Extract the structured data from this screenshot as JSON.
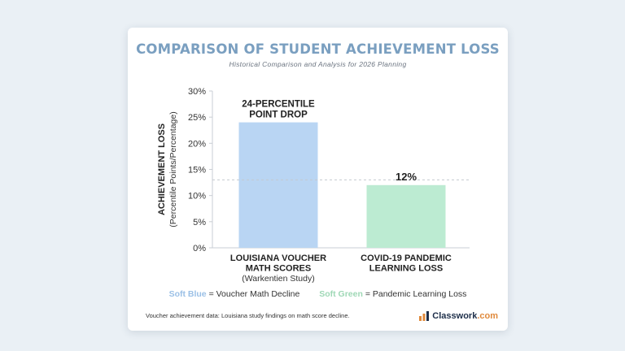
{
  "card": {
    "title": "COMPARISON OF STUDENT ACHIEVEMENT LOSS",
    "subtitle": "Historical Comparison and Analysis for 2026 Planning",
    "legend": {
      "blue_label": "Soft Blue",
      "blue_text": "= Voucher Math Decline",
      "green_label": "Soft Green",
      "green_text": "= Pandemic Learning Loss"
    },
    "footnote": "Voucher achievement data:  Louisiana study findings on math score decline.",
    "logo": {
      "name": "Classwork",
      "suffix": ".com",
      "icon": "bar-chart-logo-icon"
    }
  },
  "colors": {
    "bar_blue": "#b9d5f3",
    "bar_green": "#bcebd2",
    "title": "#7a9fc0"
  },
  "chart_data": {
    "type": "bar",
    "ylabel": "ACHIEVEMENT LOSS",
    "ylabel_sub": "(Percentile Points/Percentage)",
    "ylim": [
      0,
      30
    ],
    "yticks": [
      0,
      5,
      10,
      15,
      20,
      25,
      30
    ],
    "ytick_labels": [
      "0%",
      "5%",
      "10%",
      "15%",
      "20%",
      "25%",
      "30%"
    ],
    "categories": [
      {
        "lines": [
          "LOUISIANA VOUCHER",
          "MATH SCORES"
        ],
        "sub": "(Warkentien Study)"
      },
      {
        "lines": [
          "COVID-19 PANDEMIC",
          "LEARNING LOSS"
        ],
        "sub": ""
      }
    ],
    "values": [
      24,
      12
    ],
    "bar_labels": [
      [
        "24-PERCENTILE",
        "POINT DROP"
      ],
      [
        "12%"
      ]
    ],
    "reference_line": 13
  }
}
